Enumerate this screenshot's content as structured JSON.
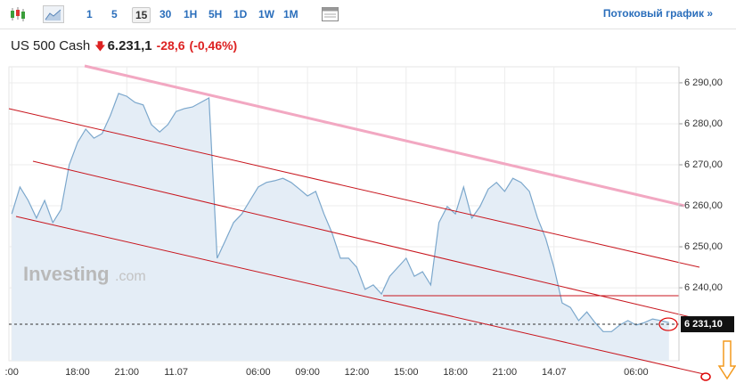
{
  "toolbar": {
    "timeframes": [
      "1",
      "5",
      "15",
      "30",
      "1H",
      "5H",
      "1D",
      "1W",
      "1M"
    ],
    "selected": "15",
    "stream_link": "Потоковый график »"
  },
  "header": {
    "instrument": "US 500 Cash",
    "price": "6.231,1",
    "change": "-28,6",
    "change_percent": "(-0,46%)"
  },
  "watermark": {
    "brand": "Investing",
    "suffix": ".com"
  },
  "chart_data": {
    "type": "line",
    "color": "#7ba7cc",
    "fill": "#e4edf6",
    "categories": [
      ":00",
      null,
      null,
      null,
      null,
      null,
      null,
      null,
      "18:00",
      null,
      null,
      null,
      null,
      null,
      "21:00",
      null,
      null,
      null,
      null,
      null,
      "11.07",
      null,
      null,
      null,
      null,
      null,
      null,
      null,
      null,
      null,
      "06:00",
      null,
      null,
      null,
      null,
      null,
      "09:00",
      null,
      null,
      null,
      null,
      null,
      "12:00",
      null,
      null,
      null,
      null,
      null,
      "15:00",
      null,
      null,
      null,
      null,
      null,
      "18:00",
      null,
      null,
      null,
      null,
      null,
      "21:00",
      null,
      null,
      null,
      null,
      null,
      "14.07",
      null,
      null,
      null,
      null,
      null,
      null,
      null,
      null,
      null,
      "06:00",
      null,
      null,
      null,
      null
    ],
    "values": [
      6258.0,
      6264.6,
      6261.3,
      6257.0,
      6261.3,
      6255.9,
      6259.1,
      6270.0,
      6275.4,
      6278.7,
      6276.5,
      6277.6,
      6282.0,
      6287.4,
      6286.7,
      6285.2,
      6284.6,
      6279.8,
      6278.0,
      6279.8,
      6283.0,
      6283.7,
      6284.1,
      6285.2,
      6286.3,
      6247.2,
      6251.5,
      6255.9,
      6258.0,
      6261.3,
      6264.6,
      6265.7,
      6266.1,
      6266.7,
      6265.7,
      6264.1,
      6262.4,
      6263.5,
      6258.0,
      6253.3,
      6247.2,
      6247.2,
      6245.0,
      6239.6,
      6240.7,
      6238.5,
      6242.8,
      6245.0,
      6247.2,
      6242.8,
      6243.9,
      6240.7,
      6255.9,
      6259.8,
      6258.0,
      6264.6,
      6257.0,
      6259.8,
      6264.1,
      6265.7,
      6263.5,
      6266.7,
      6265.7,
      6263.5,
      6257.0,
      6252.0,
      6245.0,
      6236.3,
      6235.2,
      6232.0,
      6234.1,
      6231.5,
      6229.3,
      6229.3,
      6230.9,
      6232.0,
      6230.9,
      6231.5,
      6232.4,
      6232.0,
      6231.5
    ],
    "ylim": [
      6222.2,
      6293.9
    ],
    "yticks": [
      {
        "value": 6240,
        "label": "6 240,00"
      },
      {
        "value": 6250,
        "label": "6 250,00"
      },
      {
        "value": 6260,
        "label": "6 260,00"
      },
      {
        "value": 6270,
        "label": "6 270,00"
      },
      {
        "value": 6280,
        "label": "6 280,00"
      },
      {
        "value": 6290,
        "label": "6 290,00"
      }
    ],
    "last_price": {
      "value": 6231.1,
      "label": "6 231,10"
    },
    "grid": true
  }
}
